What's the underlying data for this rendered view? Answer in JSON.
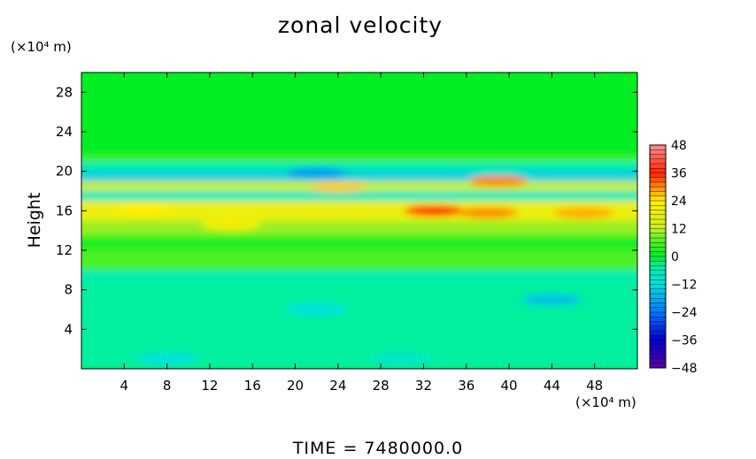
{
  "chart_data": {
    "type": "heatmap",
    "title": "zonal velocity",
    "ylabel": "Height",
    "yunit": "(×10⁴ m)",
    "xunit": "(×10⁴ m)",
    "footer": "TIME  =  7480000.0",
    "xlim": [
      0,
      52
    ],
    "ylim": [
      0,
      30
    ],
    "x_ticks": [
      4,
      8,
      12,
      16,
      20,
      24,
      28,
      32,
      36,
      40,
      44,
      48
    ],
    "y_ticks": [
      4,
      8,
      12,
      16,
      20,
      24,
      28
    ],
    "colorbar": {
      "levels": [
        48,
        36,
        24,
        12,
        0,
        -12,
        -24,
        -36,
        -48
      ],
      "level_labels": [
        "48",
        "36",
        "24",
        "12",
        "0",
        "−12",
        "−24",
        "−36",
        "−48"
      ],
      "range": [
        -48,
        48
      ]
    },
    "field_bands": [
      {
        "y_range": [
          21.5,
          30
        ],
        "value": 0
      },
      {
        "y_range": [
          21,
          21.5
        ],
        "value": 6
      },
      {
        "y_range": [
          20,
          21
        ],
        "value": -6
      },
      {
        "y_range": [
          19,
          20
        ],
        "value": -14
      },
      {
        "y_range": [
          18,
          19
        ],
        "value": 12
      },
      {
        "y_range": [
          17,
          18
        ],
        "value": -8
      },
      {
        "y_range": [
          15,
          17
        ],
        "value": 20
      },
      {
        "y_range": [
          13.5,
          15
        ],
        "value": 10
      },
      {
        "y_range": [
          12,
          13.5
        ],
        "value": 2
      },
      {
        "y_range": [
          10,
          12
        ],
        "value": 6
      },
      {
        "y_range": [
          9,
          10
        ],
        "value": -6
      },
      {
        "y_range": [
          0,
          9
        ],
        "value": -4
      }
    ],
    "features": [
      {
        "x": 6,
        "y": 16.2,
        "value": 24
      },
      {
        "x": 33,
        "y": 16,
        "value": 36
      },
      {
        "x": 38,
        "y": 15.8,
        "value": 30
      },
      {
        "x": 47,
        "y": 15.8,
        "value": 28
      },
      {
        "x": 24,
        "y": 18.4,
        "value": 26
      },
      {
        "x": 39,
        "y": 19,
        "value": 30
      },
      {
        "x": 22,
        "y": 19.8,
        "value": -20
      },
      {
        "x": 14,
        "y": 14.6,
        "value": 22
      },
      {
        "x": 8,
        "y": 1,
        "value": -12
      },
      {
        "x": 22,
        "y": 6,
        "value": -12
      },
      {
        "x": 44,
        "y": 7,
        "value": -16
      },
      {
        "x": 30,
        "y": 1,
        "value": -10
      }
    ]
  }
}
